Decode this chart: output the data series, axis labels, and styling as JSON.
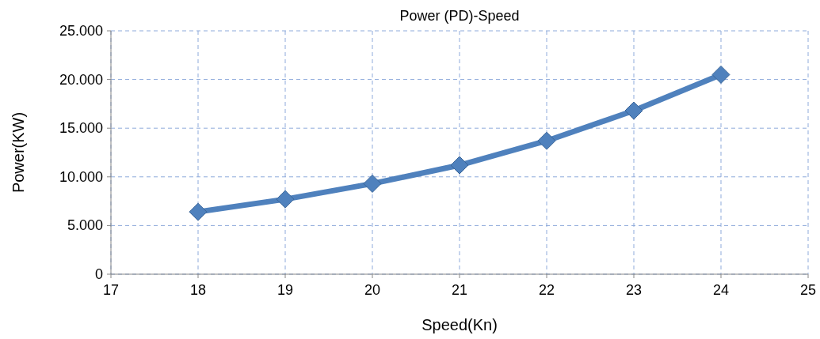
{
  "chart_data": {
    "type": "line",
    "title": "Power (PD)-Speed",
    "xlabel": "Speed(Kn)",
    "ylabel": "Power(KW)",
    "x": [
      18,
      19,
      20,
      21,
      22,
      23,
      24
    ],
    "series": [
      {
        "color": "#4f81bd",
        "values": [
          6400,
          7700,
          9300,
          11200,
          13700,
          16800,
          20500
        ]
      }
    ],
    "xlim": [
      17,
      25
    ],
    "xticks": [
      17,
      18,
      19,
      20,
      21,
      22,
      23,
      24,
      25
    ],
    "ylim": [
      0,
      25000
    ],
    "yticks": [
      0,
      {
        "value": 5000,
        "label": "5.000"
      },
      {
        "value": 10000,
        "label": "10.000"
      },
      {
        "value": 15000,
        "label": "15.000"
      },
      {
        "value": 20000,
        "label": "20.000"
      },
      {
        "value": 25000,
        "label": "25.000"
      }
    ],
    "grid": true,
    "marker": "diamond",
    "line_style": "solid"
  }
}
